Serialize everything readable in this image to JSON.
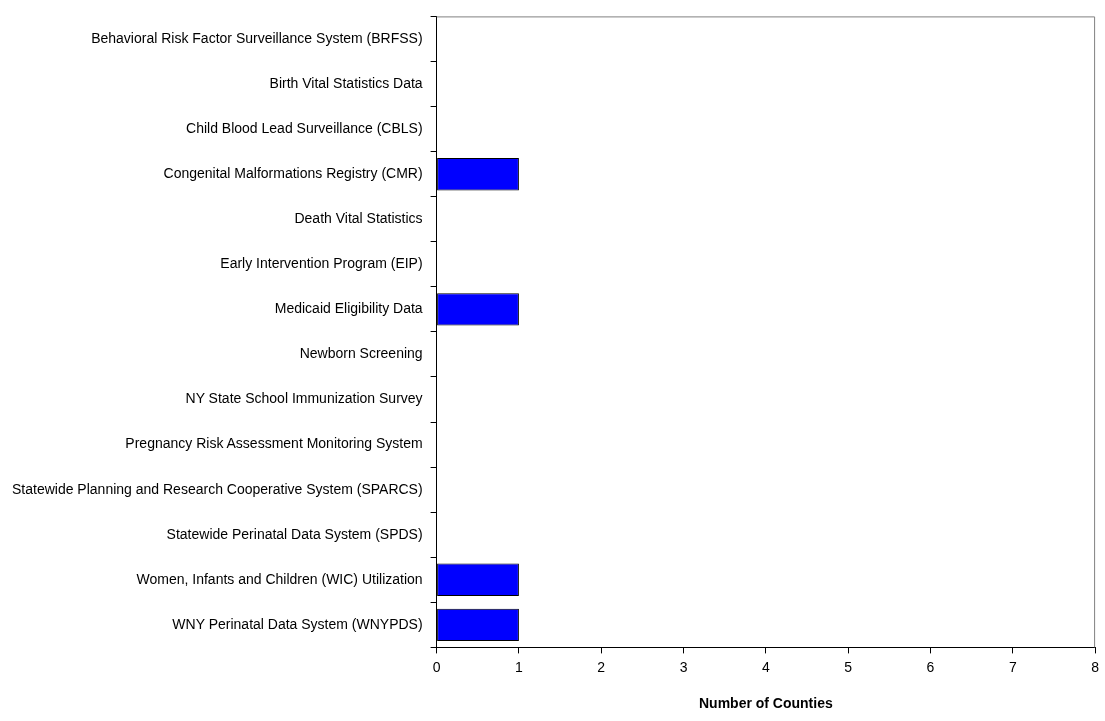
{
  "chart_data": {
    "type": "bar",
    "orientation": "horizontal",
    "categories": [
      "Behavioral Risk Factor Surveillance System (BRFSS)",
      "Birth Vital Statistics Data",
      "Child Blood Lead Surveillance (CBLS)",
      "Congenital Malformations Registry (CMR)",
      "Death Vital Statistics",
      "Early Intervention Program (EIP)",
      "Medicaid Eligibility Data",
      "Newborn Screening",
      "NY State School Immunization Survey",
      "Pregnancy Risk Assessment Monitoring System",
      "Statewide Planning and Research Cooperative System (SPARCS)",
      "Statewide Perinatal Data System (SPDS)",
      "Women, Infants and Children (WIC) Utilization",
      "WNY Perinatal Data System (WNYPDS)"
    ],
    "values": [
      0,
      0,
      0,
      1,
      0,
      0,
      1,
      0,
      0,
      0,
      0,
      0,
      1,
      1
    ],
    "color": "#0000ff",
    "xlim": [
      0,
      8
    ],
    "xticks": [
      0,
      1,
      2,
      3,
      4,
      5,
      6,
      7,
      8
    ],
    "xlabel": "Number of Counties",
    "grid": false
  }
}
